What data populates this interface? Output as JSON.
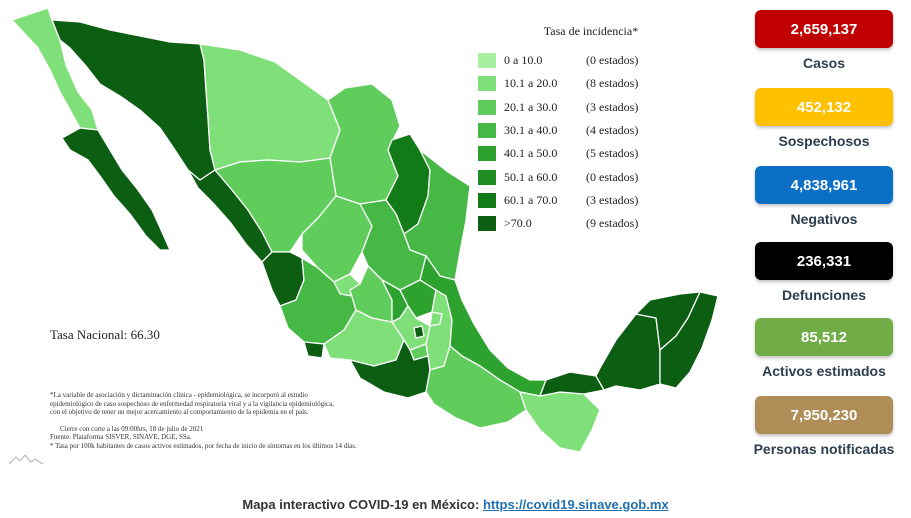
{
  "legend": {
    "title": "Tasa de incidencia*",
    "items": [
      {
        "range": "0 a 10.0",
        "count": "(0 estados)",
        "color": "#a8f0a0"
      },
      {
        "range": "10.1 a 20.0",
        "count": "(8 estados)",
        "color": "#7fe07a"
      },
      {
        "range": "20.1 a 30.0",
        "count": "(3 estados)",
        "color": "#5fcc5c"
      },
      {
        "range": "30.1 a 40.0",
        "count": "(4 estados)",
        "color": "#45b845"
      },
      {
        "range": "40.1 a 50.0",
        "count": "(5 estados)",
        "color": "#2ea22f"
      },
      {
        "range": "50.1 a 60.0",
        "count": "(0 estados)",
        "color": "#1f8d22"
      },
      {
        "range": "60.1 a 70.0",
        "count": "(3 estados)",
        "color": "#137a18"
      },
      {
        "range": ">70.0",
        "count": "(9 estados)",
        "color": "#0b5e12"
      }
    ]
  },
  "tasa_nacional": "Tasa Nacional: 66.30",
  "notes": [
    "*La variable de asociación y dictaminación clínica - epidemiológica, se incorporó al estudio",
    "epidemiológico de caso sospechoso de enfermedad respiratoria viral y a la vigilancia epidemiológica,",
    "con el objetivo de tener un mejor acercamiento al comportamiento de la epidemia en el país."
  ],
  "sources": [
    "Cierre con corte a las 09:00hrs, 18 de julio de 2021",
    "Fuente: Plataforma SISVER, SINAVE, DGE, SSa.",
    "* Tasa por 100k habitantes de casos activos estimados, por fecha de inicio de síntomas en los últimos 14 días."
  ],
  "stats": [
    {
      "value": "2,659,137",
      "label": "Casos",
      "color": "#c00000"
    },
    {
      "value": "452,132",
      "label": "Sospechosos",
      "color": "#ffc000"
    },
    {
      "value": "4,838,961",
      "label": "Negativos",
      "color": "#0b6fc5"
    },
    {
      "value": "236,331",
      "label": "Defunciones",
      "color": "#000000"
    },
    {
      "value": "85,512",
      "label": "Activos estimados",
      "color": "#70ad47"
    },
    {
      "value": "7,950,230",
      "label": "Personas notificadas",
      "color": "#b08d57"
    }
  ],
  "footer": {
    "text": "Mapa interactivo COVID-19 en México: ",
    "link": "https://covid19.sinave.gob.mx"
  }
}
